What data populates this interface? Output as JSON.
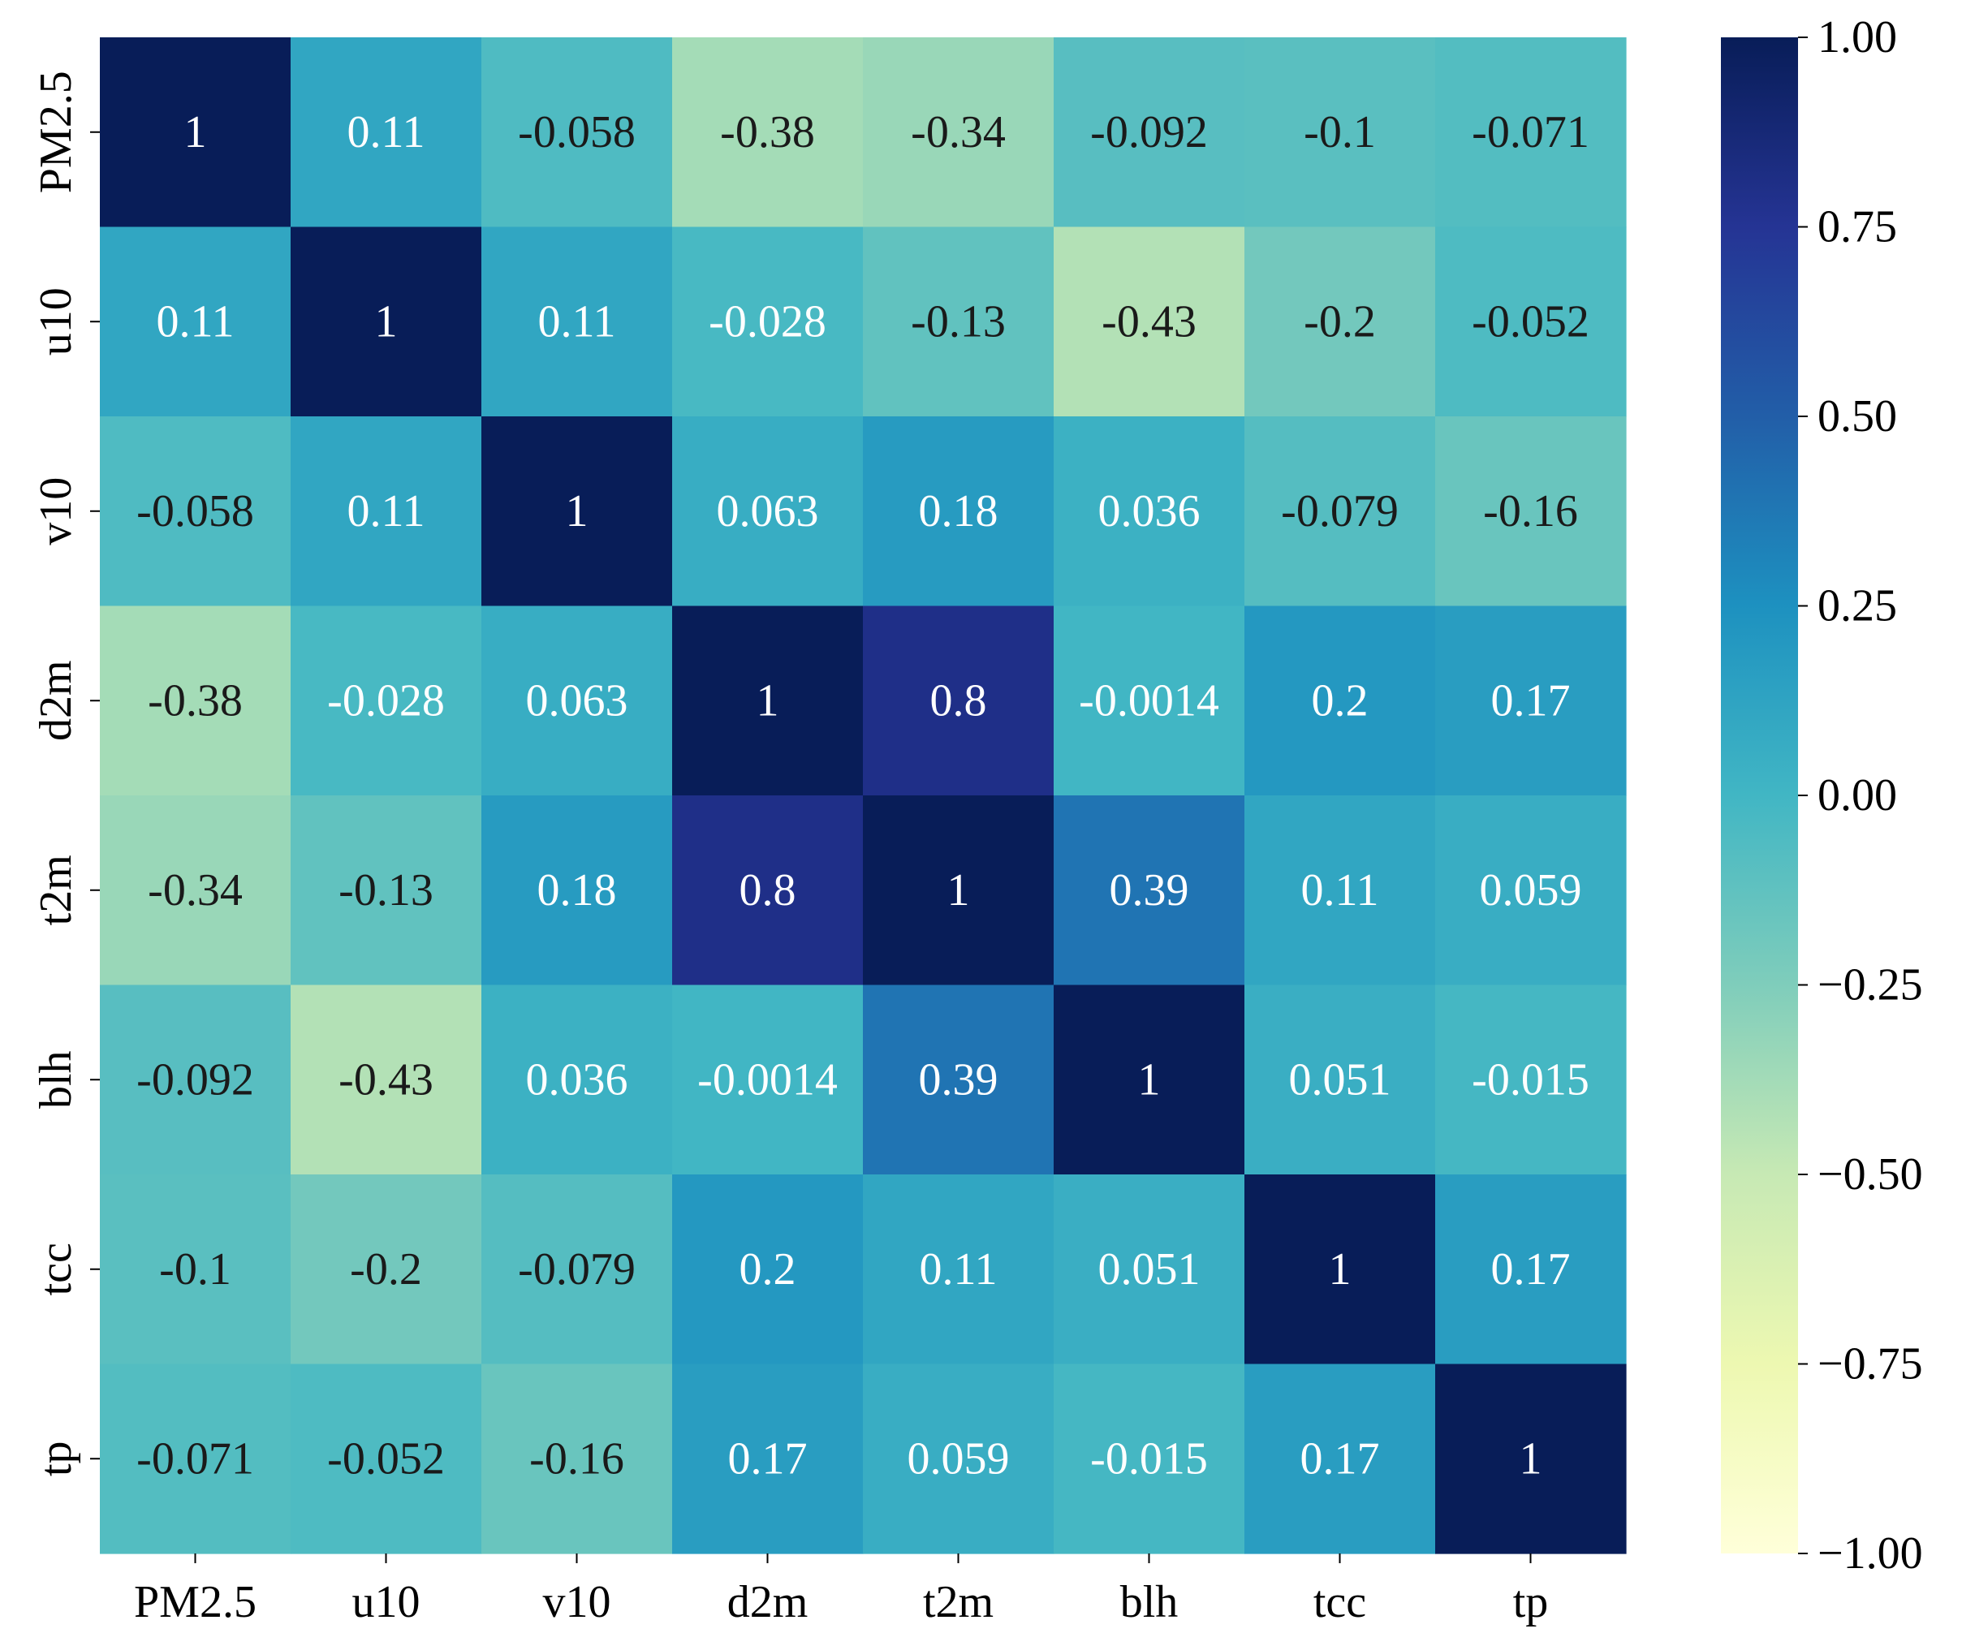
{
  "chart_data": {
    "type": "heatmap",
    "title": "",
    "xlabel": "",
    "ylabel": "",
    "x_categories": [
      "PM2.5",
      "u10",
      "v10",
      "d2m",
      "t2m",
      "blh",
      "tcc",
      "tp"
    ],
    "y_categories": [
      "PM2.5",
      "u10",
      "v10",
      "d2m",
      "t2m",
      "blh",
      "tcc",
      "tp"
    ],
    "values": [
      [
        1,
        0.11,
        -0.058,
        -0.38,
        -0.34,
        -0.092,
        -0.1,
        -0.071
      ],
      [
        0.11,
        1,
        0.11,
        -0.028,
        -0.13,
        -0.43,
        -0.2,
        -0.052
      ],
      [
        -0.058,
        0.11,
        1,
        0.063,
        0.18,
        0.036,
        -0.079,
        -0.16
      ],
      [
        -0.38,
        -0.028,
        0.063,
        1,
        0.8,
        -0.0014,
        0.2,
        0.17
      ],
      [
        -0.34,
        -0.13,
        0.18,
        0.8,
        1,
        0.39,
        0.11,
        0.059
      ],
      [
        -0.092,
        -0.43,
        0.036,
        -0.0014,
        0.39,
        1,
        0.051,
        -0.015
      ],
      [
        -0.1,
        -0.2,
        -0.079,
        0.2,
        0.11,
        0.051,
        1,
        0.17
      ],
      [
        -0.071,
        -0.052,
        -0.16,
        0.17,
        0.059,
        -0.015,
        0.17,
        1
      ]
    ],
    "annotations": [
      [
        "1",
        "0.11",
        "-0.058",
        "-0.38",
        "-0.34",
        "-0.092",
        "-0.1",
        "-0.071"
      ],
      [
        "0.11",
        "1",
        "0.11",
        "-0.028",
        "-0.13",
        "-0.43",
        "-0.2",
        "-0.052"
      ],
      [
        "-0.058",
        "0.11",
        "1",
        "0.063",
        "0.18",
        "0.036",
        "-0.079",
        "-0.16"
      ],
      [
        "-0.38",
        "-0.028",
        "0.063",
        "1",
        "0.8",
        "-0.0014",
        "0.2",
        "0.17"
      ],
      [
        "-0.34",
        "-0.13",
        "0.18",
        "0.8",
        "1",
        "0.39",
        "0.11",
        "0.059"
      ],
      [
        "-0.092",
        "-0.43",
        "0.036",
        "-0.0014",
        "0.39",
        "1",
        "0.051",
        "-0.015"
      ],
      [
        "-0.1",
        "-0.2",
        "-0.079",
        "0.2",
        "0.11",
        "0.051",
        "1",
        "0.17"
      ],
      [
        "-0.071",
        "-0.052",
        "-0.16",
        "0.17",
        "0.059",
        "-0.015",
        "0.17",
        "1"
      ]
    ],
    "vmin": -1.0,
    "vmax": 1.0,
    "colormap": "YlGnBu",
    "colormap_stops": [
      {
        "value": -1.0,
        "color": "#ffffd9"
      },
      {
        "value": -0.75,
        "color": "#edf8b1"
      },
      {
        "value": -0.5,
        "color": "#c7e9b4"
      },
      {
        "value": -0.25,
        "color": "#7fcdbb"
      },
      {
        "value": 0.0,
        "color": "#41b6c4"
      },
      {
        "value": 0.25,
        "color": "#1d91c0"
      },
      {
        "value": 0.5,
        "color": "#225ea8"
      },
      {
        "value": 0.75,
        "color": "#253494"
      },
      {
        "value": 1.0,
        "color": "#081d58"
      }
    ],
    "colorbar": {
      "ticks": [
        1.0,
        0.75,
        0.5,
        0.25,
        0.0,
        -0.25,
        -0.5,
        -0.75,
        -1.0
      ],
      "tick_labels": [
        "1.00",
        "0.75",
        "0.50",
        "0.25",
        "0.00",
        "−0.25",
        "−0.50",
        "−0.75",
        "−1.00"
      ]
    },
    "text_color_dark": "#1a1a1a",
    "text_color_light": "#ffffff"
  }
}
